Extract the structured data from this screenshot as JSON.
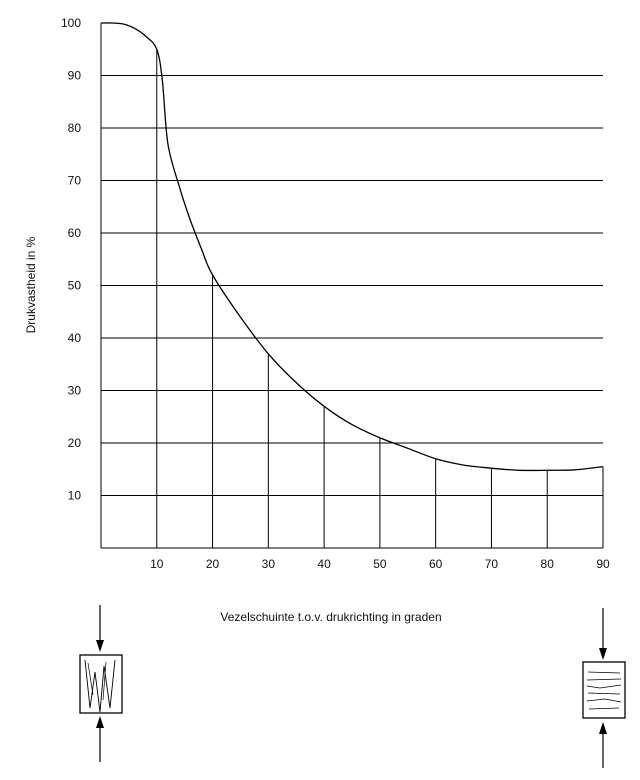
{
  "chart_data": {
    "type": "line",
    "title": "",
    "xlabel": "Vezelschuinte t.o.v. drukrichting in graden",
    "ylabel": "Drukvastheid in %",
    "xlim": [
      0,
      90
    ],
    "ylim": [
      0,
      100
    ],
    "x_ticks": [
      10,
      20,
      30,
      40,
      50,
      60,
      70,
      80,
      90
    ],
    "y_ticks": [
      10,
      20,
      30,
      40,
      50,
      60,
      70,
      80,
      90,
      100
    ],
    "grid": true,
    "series": [
      {
        "name": "",
        "x": [
          0,
          2,
          4,
          6,
          8,
          10,
          11,
          12,
          14,
          16,
          18,
          20,
          25,
          30,
          35,
          40,
          45,
          50,
          55,
          60,
          65,
          70,
          75,
          80,
          85,
          90
        ],
        "y": [
          100,
          100,
          99.8,
          99,
          97.5,
          95,
          89,
          77,
          69,
          62.5,
          57,
          52,
          44,
          37,
          31.5,
          27,
          23.5,
          21,
          19,
          17,
          15.8,
          15.2,
          14.8,
          14.8,
          14.9,
          15.5
        ]
      }
    ]
  },
  "icons": {
    "left_specimen": "wood-block-grain-parallel-icon",
    "right_specimen": "wood-block-grain-perpendicular-icon"
  }
}
